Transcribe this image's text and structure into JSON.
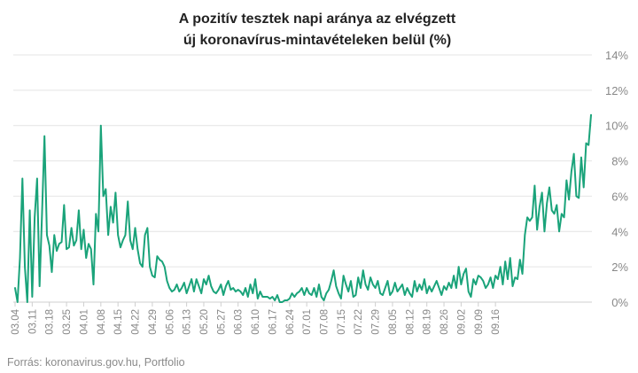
{
  "chart_data": {
    "type": "line",
    "title": "A pozitív tesztek napi aránya az elvégzett új koronavírus-mintavételeken belül (%)",
    "title_lines": [
      "A pozitív tesztek napi aránya az elvégzett",
      "új koronavírus-mintavételeken belül (%)"
    ],
    "source": "Forrás: koronavirus.gov.hu, Portfolio",
    "ylim": [
      0,
      14
    ],
    "yticks": [
      {
        "value": 0,
        "label": "0%"
      },
      {
        "value": 2,
        "label": "2%"
      },
      {
        "value": 4,
        "label": "4%"
      },
      {
        "value": 6,
        "label": "6%"
      },
      {
        "value": 8,
        "label": "8%"
      },
      {
        "value": 10,
        "label": "10%"
      },
      {
        "value": 12,
        "label": "12%"
      },
      {
        "value": 14,
        "label": "14%"
      }
    ],
    "grid": true,
    "x_ticks": [
      "03.04",
      "03.11",
      "03.18",
      "03.25",
      "04.01",
      "04.08",
      "04.15",
      "04.22",
      "04.29",
      "05.06",
      "05.13",
      "05.20",
      "05.27",
      "06.03",
      "06.10",
      "06.17",
      "06.24",
      "07.01",
      "07.08",
      "07.15",
      "07.22",
      "07.29",
      "08.05",
      "08.12",
      "08.19",
      "08.26",
      "09.02",
      "09.09",
      "09.16"
    ],
    "x_start": "03.04",
    "color": "#1aa37a",
    "series": [
      {
        "values": [
          0.8,
          0,
          2.5,
          7.0,
          2.0,
          0,
          5.2,
          0.3,
          4.8,
          7.0,
          0.9,
          5.0,
          9.4,
          3.8,
          3.2,
          1.7,
          3.8,
          2.9,
          3.3,
          3.4,
          5.5,
          3.0,
          3.1,
          4.2,
          3.2,
          3.5,
          5.2,
          3.0,
          4.1,
          2.5,
          3.3,
          3.0,
          1.0,
          5.0,
          4.0,
          10.0,
          6.0,
          6.4,
          3.8,
          5.4,
          4.5,
          6.2,
          3.8,
          3.1,
          3.5,
          3.8,
          5.7,
          3.5,
          3.0,
          4.2,
          3.0,
          2.2,
          2.0,
          3.8,
          4.2,
          2.0,
          1.5,
          1.4,
          2.6,
          2.4,
          2.3,
          2.0,
          1.2,
          0.8,
          0.6,
          0.7,
          1.0,
          0.6,
          0.8,
          1.1,
          0.5,
          0.9,
          1.3,
          0.6,
          1.3,
          0.9,
          0.5,
          1.3,
          1.0,
          1.5,
          0.9,
          0.6,
          0.5,
          0.7,
          1.0,
          0.4,
          0.9,
          1.2,
          0.7,
          0.8,
          0.6,
          0.7,
          0.6,
          0.4,
          0.8,
          0.3,
          1.0,
          0.5,
          1.3,
          0.2,
          0.6,
          0.3,
          0.3,
          0.3,
          0.2,
          0.3,
          0.1,
          0.4,
          0,
          0,
          0.1,
          0.1,
          0.2,
          0.5,
          0.3,
          0.5,
          0.6,
          0.8,
          0.4,
          0.8,
          0.5,
          0.4,
          0.8,
          0.3,
          1.0,
          0.3,
          0.1,
          0.5,
          0.7,
          1.2,
          1.8,
          0.9,
          0.5,
          0.2,
          1.5,
          1.0,
          0.6,
          1.2,
          0.3,
          0.4,
          1.4,
          0.8,
          1.8,
          1.0,
          0.7,
          1.4,
          1.0,
          0.8,
          1.2,
          0.5,
          0.4,
          0.8,
          1.2,
          0.4,
          0.6,
          1.1,
          0.6,
          0.8,
          1.0,
          0.4,
          0.8,
          0.5,
          0.3,
          1.2,
          0.6,
          1.0,
          0.7,
          1.3,
          0.5,
          0.9,
          0.6,
          0.9,
          1.2,
          0.8,
          0.4,
          0.9,
          0.7,
          1.1,
          0.8,
          1.5,
          0.8,
          2.0,
          1.0,
          1.6,
          1.9,
          0.6,
          0.3,
          1.3,
          1.0,
          1.5,
          1.4,
          1.2,
          0.8,
          1.0,
          1.4,
          0.8,
          1.5,
          1.3,
          2.0,
          1.0,
          2.3,
          1.3,
          2.5,
          0.9,
          1.4,
          1.3,
          2.4,
          1.6,
          3.8,
          4.8,
          4.6,
          4.8,
          6.6,
          4.1,
          5.4,
          6.2,
          4.0,
          5.6,
          6.5,
          5.2,
          5.0,
          5.5,
          4.0,
          5.0,
          4.8,
          6.9,
          5.8,
          7.4,
          8.4,
          6.0,
          5.9,
          8.2,
          6.5,
          9.0,
          8.9,
          10.6
        ]
      }
    ]
  }
}
